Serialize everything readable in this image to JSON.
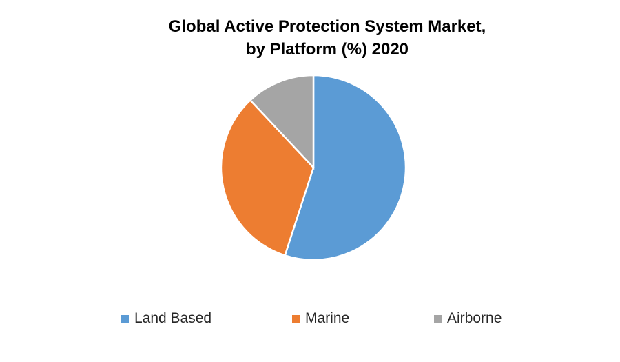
{
  "chart_data": {
    "type": "pie",
    "title_line1": "Global Active Protection System Market,",
    "title_line2": "by Platform (%) 2020",
    "categories": [
      "Land Based",
      "Marine",
      "Airborne"
    ],
    "values": [
      55,
      33,
      12
    ],
    "colors": [
      "#5B9BD5",
      "#ED7D31",
      "#A5A5A5"
    ],
    "start_angle": "top, clockwise",
    "legend_position": "bottom"
  }
}
